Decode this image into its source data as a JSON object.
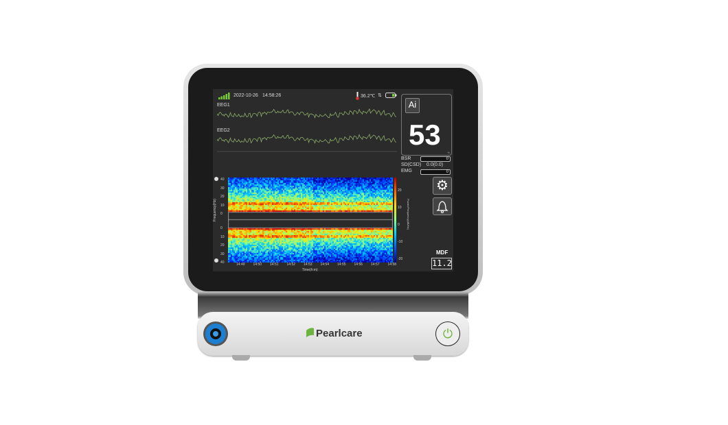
{
  "status": {
    "date": "2022-10-26",
    "time": "14:58:26",
    "temperature": "36.2℃",
    "signal_icon": "signal-bars-icon",
    "thermometer_icon": "thermometer-icon",
    "battery_icon": "battery-icon"
  },
  "channels": [
    {
      "label": "EEG1"
    },
    {
      "label": "EEG2"
    }
  ],
  "index": {
    "ai_label": "Ai",
    "value": "53",
    "unit": "%"
  },
  "params": {
    "bsr_label": "BSR",
    "bsr_value": "0",
    "sd_label": "SD(CSD)",
    "sd_value": "0.0(0.0)",
    "emg_label": "EMG",
    "emg_value": "0"
  },
  "mdf": {
    "label": "MDF",
    "value": "11.2"
  },
  "spectrogram": {
    "y_label": "Frequency(Hz)",
    "x_label": "Time(h:m)",
    "colorbar_label": "Power/Frequency(dB/Hz)",
    "y_ticks_top": [
      "40",
      "30",
      "20",
      "10",
      "0"
    ],
    "y_ticks_bottom": [
      "0",
      "10",
      "20",
      "30",
      "40"
    ],
    "x_ticks": [
      "14:49",
      "14:50",
      "14:51",
      "14:52",
      "14:53",
      "14:54",
      "14:55",
      "14:56",
      "14:57",
      "14:58"
    ],
    "colorbar_ticks": [
      "20",
      "10",
      "0",
      "-10",
      "-20"
    ]
  },
  "brand": {
    "name": "Pearlcare"
  },
  "colors": {
    "wave": "#8fae6a",
    "brand_green": "#6cb33f",
    "connector_blue": "#1e7fd0"
  }
}
